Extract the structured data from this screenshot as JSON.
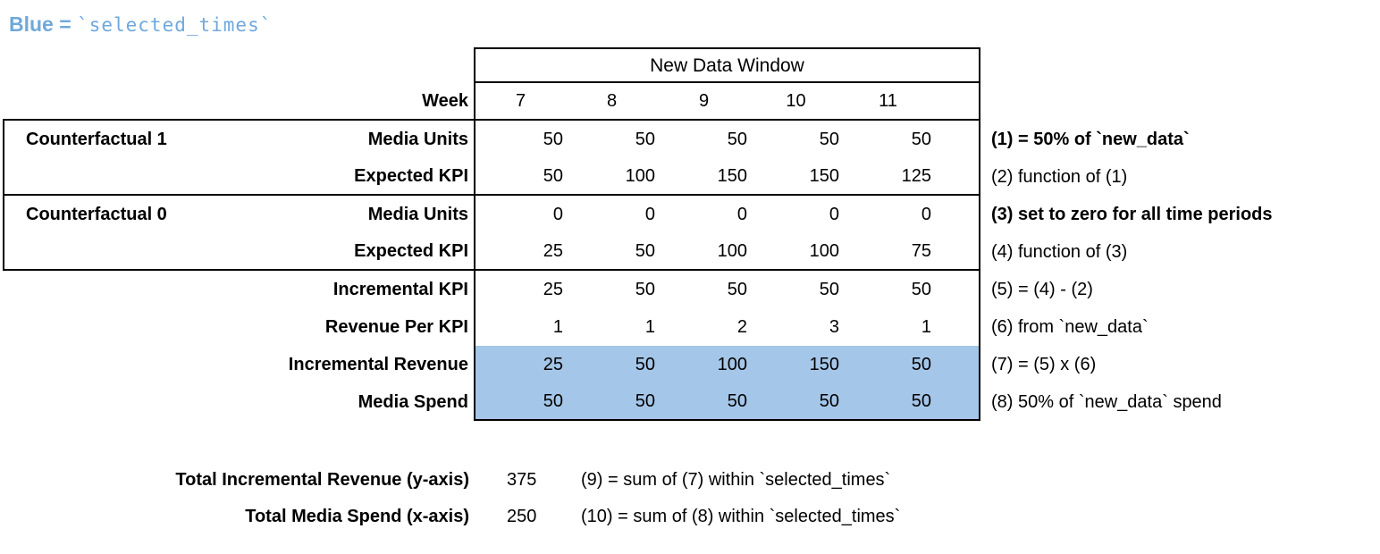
{
  "legend": {
    "prefix": "Blue = ",
    "code": "`selected_times`",
    "highlight_color": "#a4c6e8",
    "text_color": "#6fa8dc"
  },
  "table": {
    "header": "New Data Window",
    "week_label": "Week",
    "weeks": [
      "7",
      "8",
      "9",
      "10",
      "11"
    ],
    "rows": [
      {
        "group": "Counterfactual 1",
        "label": "Media Units",
        "values": [
          "50",
          "50",
          "50",
          "50",
          "50"
        ],
        "annotation": "(1) = 50% of `new_data`"
      },
      {
        "group": "",
        "label": "Expected KPI",
        "values": [
          "50",
          "100",
          "150",
          "150",
          "125"
        ],
        "annotation": "(2) function of (1)"
      },
      {
        "group": "Counterfactual 0",
        "label": "Media Units",
        "values": [
          "0",
          "0",
          "0",
          "0",
          "0"
        ],
        "annotation": "(3) set to zero for all time periods"
      },
      {
        "group": "",
        "label": "Expected KPI",
        "values": [
          "25",
          "50",
          "100",
          "100",
          "75"
        ],
        "annotation": "(4) function of (3)"
      },
      {
        "group": "",
        "label": "Incremental KPI",
        "values": [
          "25",
          "50",
          "50",
          "50",
          "50"
        ],
        "annotation": "(5) = (4) - (2)"
      },
      {
        "group": "",
        "label": "Revenue Per KPI",
        "values": [
          "1",
          "1",
          "2",
          "3",
          "1"
        ],
        "annotation": "(6) from `new_data`"
      },
      {
        "group": "",
        "label": "Incremental Revenue",
        "values": [
          "25",
          "50",
          "100",
          "150",
          "50"
        ],
        "annotation": "(7) = (5) x (6)"
      },
      {
        "group": "",
        "label": "Media Spend",
        "values": [
          "50",
          "50",
          "50",
          "50",
          "50"
        ],
        "annotation": "(8) 50% of `new_data` spend"
      }
    ]
  },
  "totals": [
    {
      "label": "Total Incremental Revenue (y-axis)",
      "value": "375",
      "annotation": "(9) = sum of (7) within `selected_times`"
    },
    {
      "label": "Total Media Spend (x-axis)",
      "value": "250",
      "annotation": "(10) = sum of (8) within `selected_times`"
    }
  ]
}
